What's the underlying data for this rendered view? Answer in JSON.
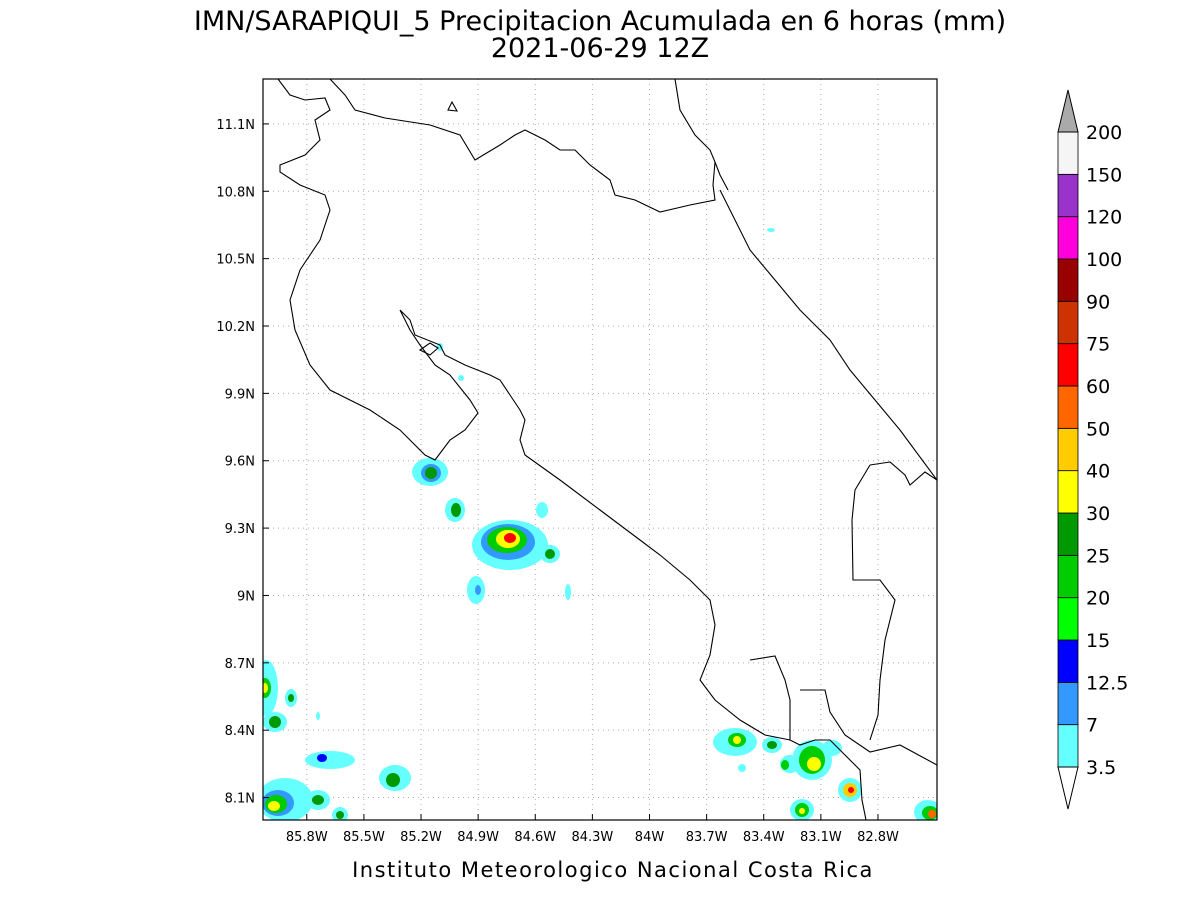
{
  "map": {
    "title": "IMN/SARAPIQUI_5 Precipitacion Acumulada en 6 horas (mm)",
    "subtitle": "2021-06-29 12Z",
    "footer": "Instituto Meteorologico Nacional Costa Rica",
    "latlim": [
      8.0,
      11.3
    ],
    "lonlim": [
      -86.03,
      -82.49
    ],
    "lat_ticks": [
      {
        "value": 11.1,
        "label": "11.1N"
      },
      {
        "value": 10.8,
        "label": "10.8N"
      },
      {
        "value": 10.5,
        "label": "10.5N"
      },
      {
        "value": 10.2,
        "label": "10.2N"
      },
      {
        "value": 9.9,
        "label": "9.9N"
      },
      {
        "value": 9.6,
        "label": "9.6N"
      },
      {
        "value": 9.3,
        "label": "9.3N"
      },
      {
        "value": 9.0,
        "label": "9N"
      },
      {
        "value": 8.7,
        "label": "8.7N"
      },
      {
        "value": 8.4,
        "label": "8.4N"
      },
      {
        "value": 8.1,
        "label": "8.1N"
      }
    ],
    "lon_ticks": [
      {
        "value": -85.8,
        "label": "85.8W"
      },
      {
        "value": -85.5,
        "label": "85.5W"
      },
      {
        "value": -85.2,
        "label": "85.2W"
      },
      {
        "value": -84.9,
        "label": "84.9W"
      },
      {
        "value": -84.6,
        "label": "84.6W"
      },
      {
        "value": -84.3,
        "label": "84.3W"
      },
      {
        "value": -84.0,
        "label": "84W"
      },
      {
        "value": -83.7,
        "label": "83.7W"
      },
      {
        "value": -83.4,
        "label": "83.4W"
      },
      {
        "value": -83.1,
        "label": "83.1W"
      },
      {
        "value": -82.8,
        "label": "82.8W"
      }
    ],
    "colorbar": {
      "levels": [
        3.5,
        7,
        12.5,
        15,
        20,
        25,
        30,
        40,
        50,
        60,
        75,
        90,
        100,
        120,
        150,
        200
      ],
      "colors": [
        "#66ffff",
        "#3399ff",
        "#0000ff",
        "#00ff00",
        "#00cc00",
        "#009900",
        "#ffff00",
        "#ffcc00",
        "#ff6600",
        "#ff0000",
        "#cc3300",
        "#990000",
        "#ff00dd",
        "#9933cc",
        "#f5f5f5"
      ],
      "under_color": "#ffffff",
      "over_color": "#aaaaaa"
    }
  }
}
